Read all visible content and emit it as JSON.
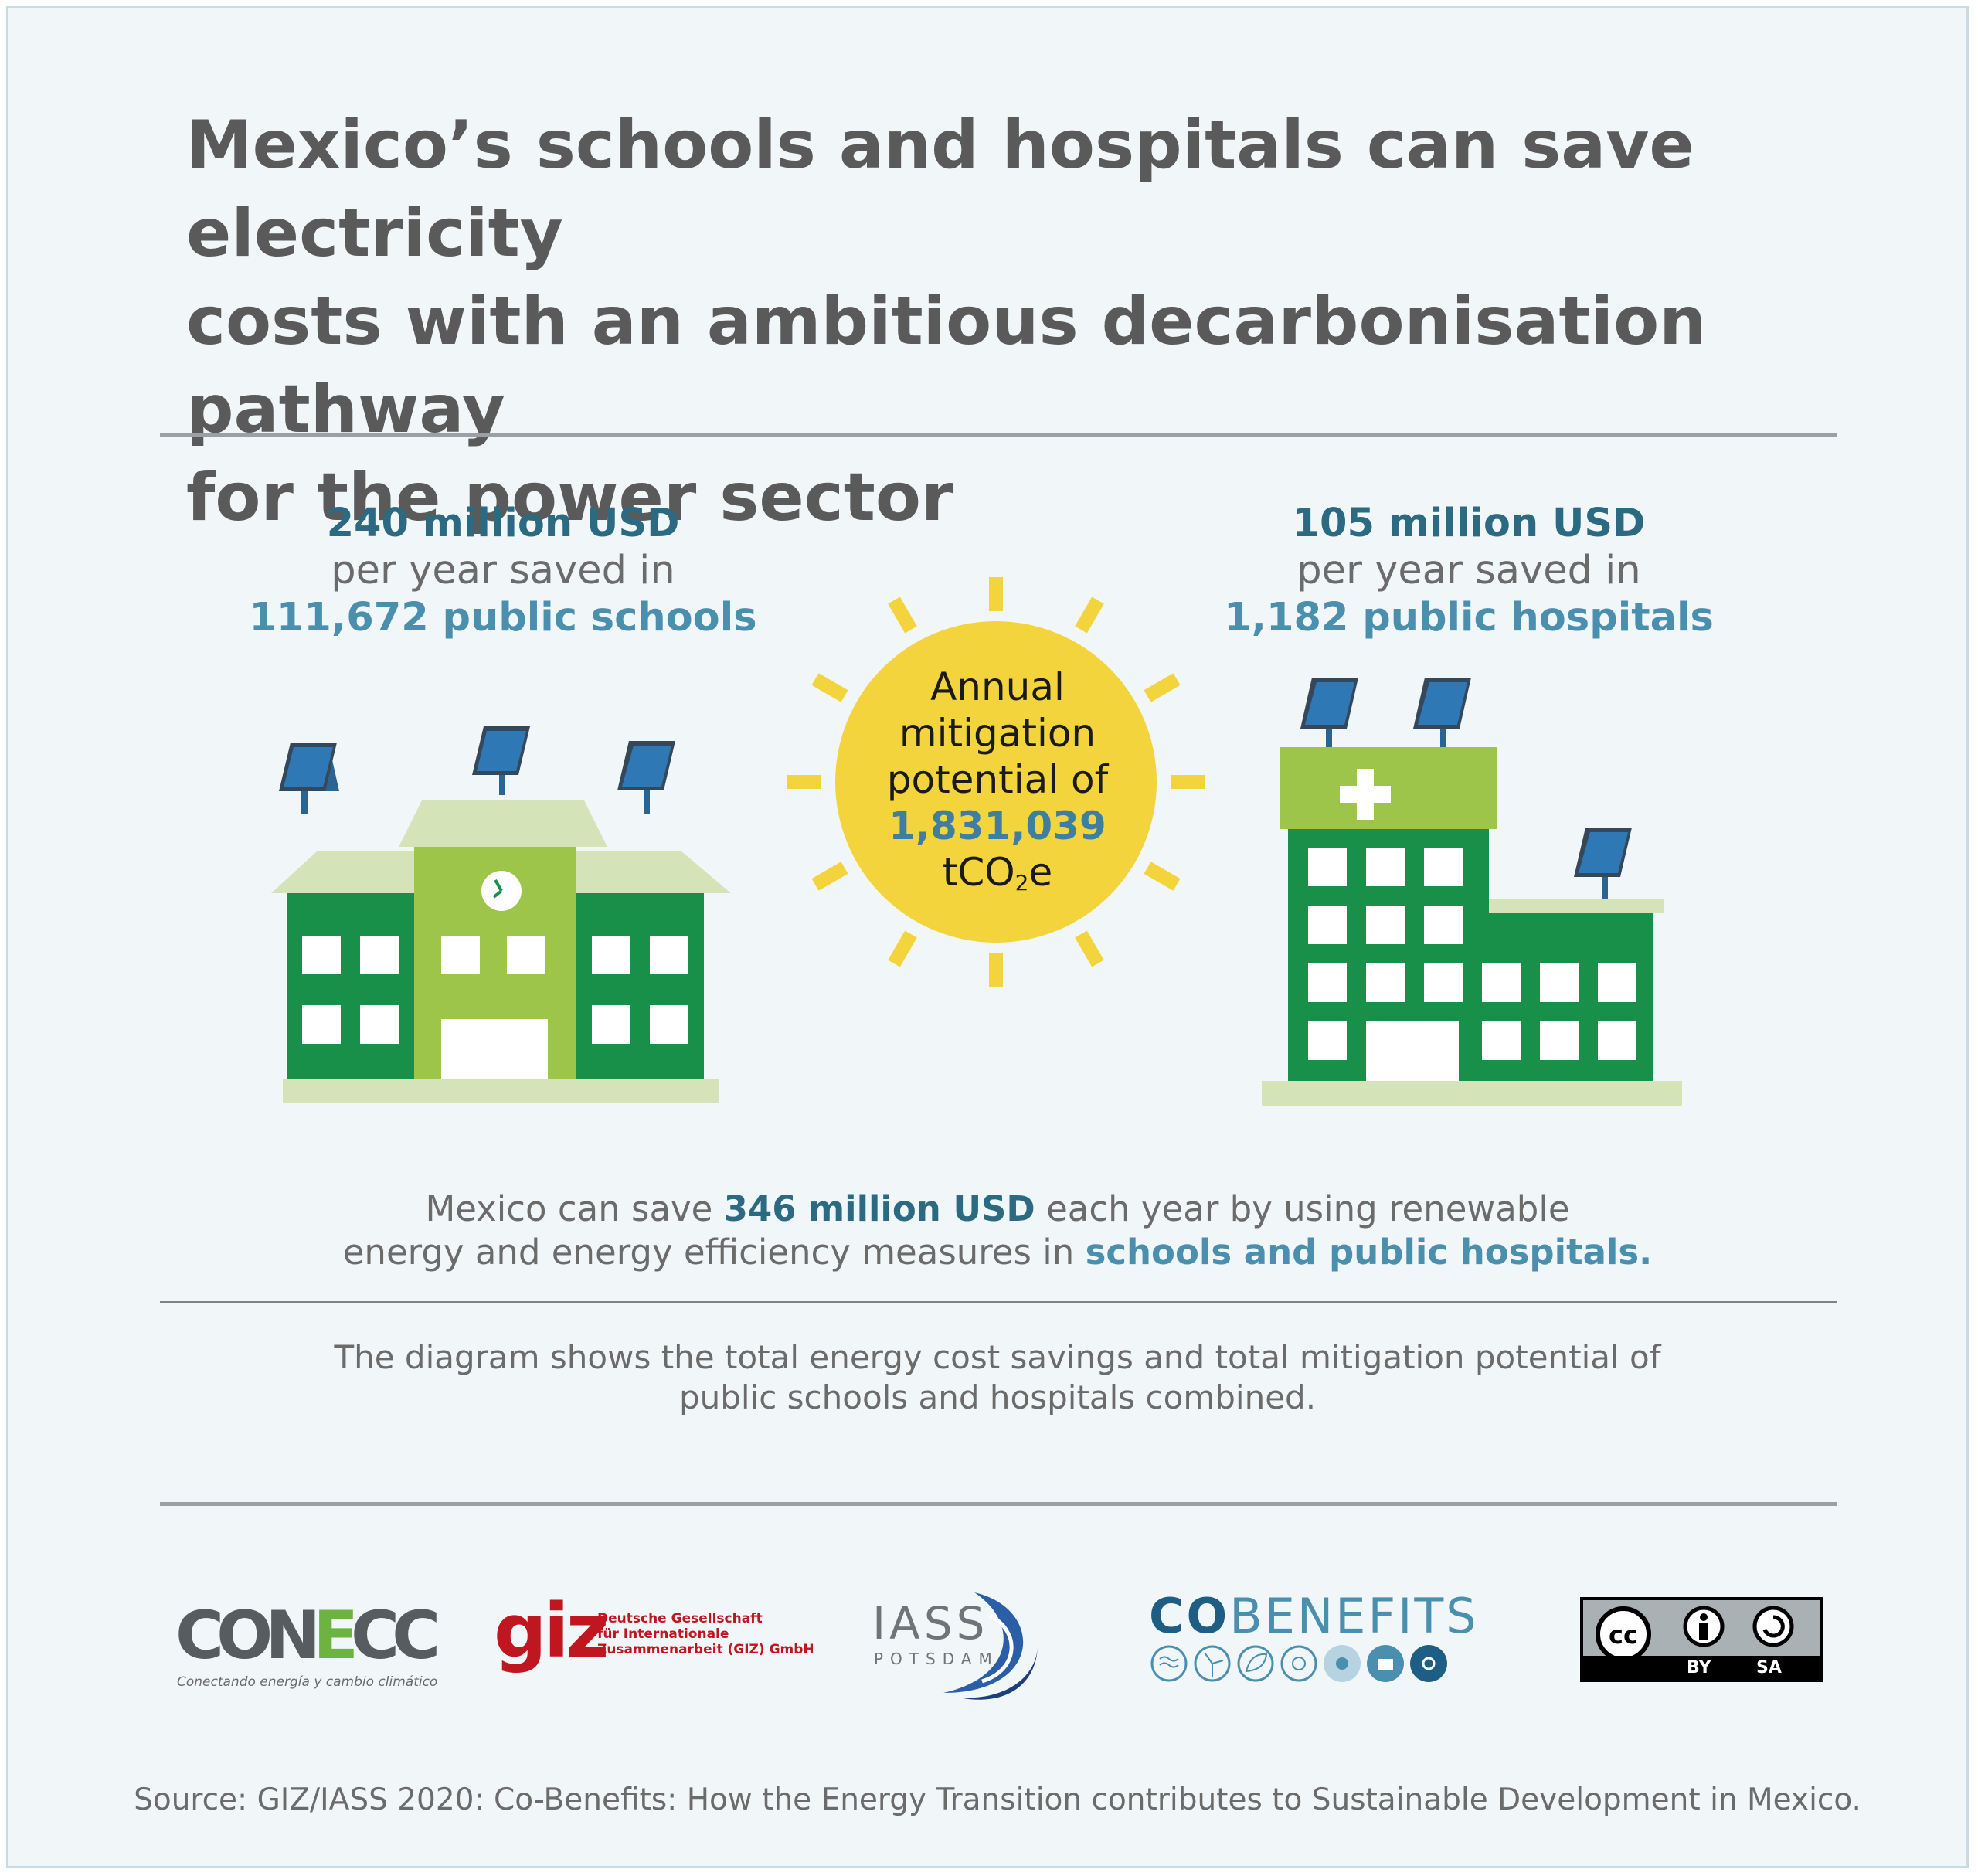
{
  "title": {
    "line1": "Mexico’s schools and hospitals can save electricity",
    "line2": "costs with an ambitious decarbonisation pathway",
    "line3": "for the power sector"
  },
  "schools": {
    "amount": "240 million USD",
    "per_year": "per year saved in",
    "count": "111,672 public schools"
  },
  "hospitals": {
    "amount": "105 million USD",
    "per_year": "per year saved in",
    "count": "1,182 public hospitals"
  },
  "sun": {
    "line1": "Annual",
    "line2": "mitigation",
    "line3": "potential of",
    "value": "1,831,039",
    "unit_prefix": "tCO",
    "unit_sub": "2",
    "unit_suffix": "e"
  },
  "summary": {
    "part1": "Mexico can save ",
    "highlight_amount": "346 million USD",
    "part2": " each year by using renewable",
    "line2": "energy and energy efficiency measures in ",
    "highlight_target": "schools and public hospitals."
  },
  "note": {
    "line1": "The diagram shows the total energy cost savings and total mitigation potential of",
    "line2": "public schools and hospitals combined."
  },
  "logos": {
    "conecc": {
      "word_a": "CON",
      "word_e": "E",
      "word_b": "CC",
      "tagline": "Conectando energía y cambio climático"
    },
    "giz": {
      "word": "giz",
      "line1": "Deutsche Gesellschaft",
      "line2": "für Internationale",
      "line3": "Zusammenarbeit (GIZ) GmbH"
    },
    "iass": {
      "word": "IASS",
      "sub": "POTSDAM"
    },
    "cobenefits": {
      "co": "CO",
      "benefits": "BENEFITS"
    },
    "license": {
      "cc": "cc",
      "by": "BY",
      "sa": "SA"
    }
  },
  "source": "Source: GIZ/IASS 2020: Co-Benefits: How the Energy Transition contributes to Sustainable Development in Mexico.",
  "colors": {
    "dark_green": "#18904a",
    "light_green": "#9dc54a",
    "pale_green": "#d4e3b8",
    "sun_yellow": "#f3d43d",
    "panel_blue": "#2a6492",
    "highlight_dark": "#2c6a82",
    "highlight_light": "#4a8fae",
    "heading_grey": "#5a5a5a"
  }
}
